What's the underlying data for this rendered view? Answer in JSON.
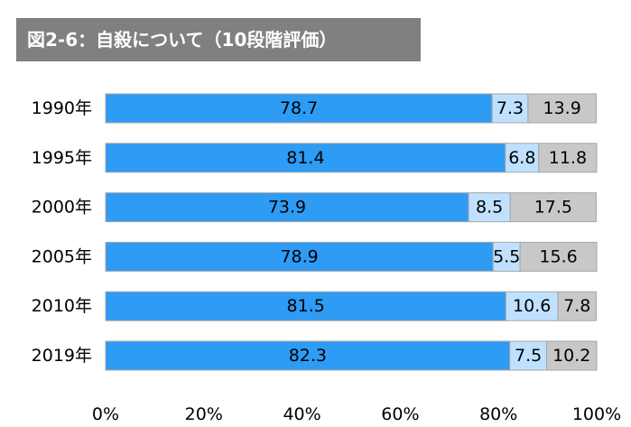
{
  "chart_data": {
    "type": "bar",
    "stacked": true,
    "orientation": "horizontal",
    "title": "図2-6：自殺について（10段階評価）",
    "categories": [
      "1990年",
      "1995年",
      "2000年",
      "2005年",
      "2010年",
      "2019年"
    ],
    "series": [
      {
        "values": [
          78.7,
          81.4,
          73.9,
          78.9,
          81.5,
          82.3
        ]
      },
      {
        "values": [
          7.3,
          6.8,
          8.5,
          5.5,
          10.6,
          7.5
        ]
      },
      {
        "values": [
          13.9,
          11.8,
          17.5,
          15.6,
          7.8,
          10.2
        ]
      }
    ],
    "xlim": [
      0,
      100
    ],
    "x_ticks": [
      "0%",
      "20%",
      "40%",
      "60%",
      "80%",
      "100%"
    ],
    "grid": false,
    "legend": "none",
    "colors": [
      "#2E9BF5",
      "#BFE1FF",
      "#C8C8C8"
    ],
    "stroke_color": "#A6A6A6"
  }
}
